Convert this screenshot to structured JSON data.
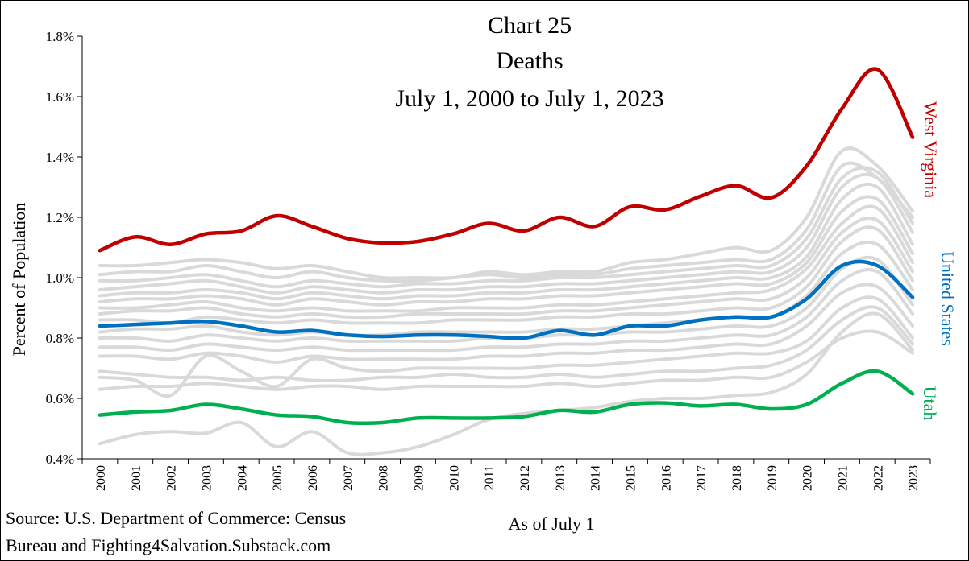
{
  "chart_data": {
    "type": "line",
    "title": [
      "Chart 25",
      "Deaths",
      "July 1, 2000 to July 1, 2023"
    ],
    "xlabel": "As of July 1",
    "ylabel": "Percent of Population",
    "ylim": [
      0.4,
      1.8
    ],
    "yticks": [
      "0.4%",
      "0.6%",
      "0.8%",
      "1.0%",
      "1.2%",
      "1.4%",
      "1.6%",
      "1.8%"
    ],
    "yticks_values": [
      0.4,
      0.6,
      0.8,
      1.0,
      1.2,
      1.4,
      1.6,
      1.8
    ],
    "categories": [
      "2000",
      "2001",
      "2002",
      "2003",
      "2004",
      "2005",
      "2006",
      "2007",
      "2008",
      "2009",
      "2010",
      "2011",
      "2012",
      "2013",
      "2014",
      "2015",
      "2016",
      "2017",
      "2018",
      "2019",
      "2020",
      "2021",
      "2022",
      "2023"
    ],
    "series": [
      {
        "name": "West Virginia",
        "color": "#C00000",
        "values": [
          1.09,
          1.135,
          1.11,
          1.145,
          1.155,
          1.205,
          1.17,
          1.13,
          1.115,
          1.12,
          1.145,
          1.18,
          1.155,
          1.2,
          1.17,
          1.235,
          1.225,
          1.27,
          1.305,
          1.265,
          1.37,
          1.56,
          1.69,
          1.465
        ]
      },
      {
        "name": "United States",
        "color": "#0070C0",
        "values": [
          0.84,
          0.845,
          0.85,
          0.855,
          0.84,
          0.82,
          0.825,
          0.81,
          0.805,
          0.81,
          0.81,
          0.805,
          0.8,
          0.825,
          0.81,
          0.84,
          0.84,
          0.86,
          0.87,
          0.87,
          0.93,
          1.04,
          1.04,
          0.935
        ]
      },
      {
        "name": "Utah",
        "color": "#00B050",
        "values": [
          0.545,
          0.555,
          0.56,
          0.58,
          0.565,
          0.545,
          0.54,
          0.52,
          0.52,
          0.535,
          0.535,
          0.535,
          0.54,
          0.56,
          0.555,
          0.58,
          0.585,
          0.575,
          0.58,
          0.565,
          0.58,
          0.65,
          0.69,
          0.615
        ]
      }
    ],
    "background_series": [
      {
        "values": [
          0.45,
          0.48,
          0.49,
          0.485,
          0.52,
          0.44,
          0.49,
          0.42,
          0.42,
          0.44,
          0.48,
          0.53,
          0.55,
          0.56,
          0.57,
          0.59,
          0.6,
          0.6,
          0.61,
          0.62,
          0.68,
          0.82,
          0.88,
          0.76
        ]
      },
      {
        "values": [
          0.63,
          0.64,
          0.64,
          0.65,
          0.64,
          0.63,
          0.64,
          0.64,
          0.63,
          0.64,
          0.64,
          0.64,
          0.64,
          0.65,
          0.64,
          0.65,
          0.66,
          0.66,
          0.67,
          0.67,
          0.72,
          0.8,
          0.82,
          0.75
        ]
      },
      {
        "values": [
          0.67,
          0.66,
          0.61,
          0.74,
          0.69,
          0.64,
          0.73,
          0.7,
          0.69,
          0.7,
          0.7,
          0.7,
          0.7,
          0.71,
          0.71,
          0.72,
          0.73,
          0.74,
          0.75,
          0.75,
          0.79,
          0.9,
          0.93,
          0.8
        ]
      },
      {
        "values": [
          0.69,
          0.68,
          0.67,
          0.67,
          0.66,
          0.67,
          0.66,
          0.66,
          0.67,
          0.67,
          0.68,
          0.67,
          0.67,
          0.68,
          0.67,
          0.68,
          0.69,
          0.69,
          0.7,
          0.71,
          0.76,
          0.86,
          0.9,
          0.78
        ]
      },
      {
        "values": [
          0.74,
          0.74,
          0.73,
          0.75,
          0.74,
          0.72,
          0.74,
          0.73,
          0.73,
          0.73,
          0.73,
          0.74,
          0.74,
          0.75,
          0.75,
          0.76,
          0.76,
          0.77,
          0.78,
          0.78,
          0.84,
          0.95,
          0.97,
          0.84
        ]
      },
      {
        "values": [
          0.77,
          0.77,
          0.76,
          0.78,
          0.77,
          0.76,
          0.77,
          0.76,
          0.76,
          0.76,
          0.76,
          0.77,
          0.77,
          0.78,
          0.78,
          0.79,
          0.79,
          0.8,
          0.81,
          0.81,
          0.87,
          0.99,
          1.02,
          0.88
        ]
      },
      {
        "values": [
          0.8,
          0.8,
          0.79,
          0.81,
          0.8,
          0.79,
          0.8,
          0.79,
          0.79,
          0.79,
          0.79,
          0.8,
          0.8,
          0.81,
          0.81,
          0.82,
          0.82,
          0.83,
          0.84,
          0.84,
          0.9,
          1.03,
          1.06,
          0.91
        ]
      },
      {
        "values": [
          0.82,
          0.83,
          0.83,
          0.84,
          0.82,
          0.81,
          0.82,
          0.81,
          0.81,
          0.82,
          0.82,
          0.82,
          0.82,
          0.83,
          0.83,
          0.84,
          0.85,
          0.86,
          0.87,
          0.87,
          0.94,
          1.08,
          1.11,
          0.96
        ]
      },
      {
        "values": [
          0.86,
          0.86,
          0.85,
          0.87,
          0.86,
          0.85,
          0.86,
          0.85,
          0.85,
          0.85,
          0.86,
          0.86,
          0.86,
          0.87,
          0.87,
          0.88,
          0.88,
          0.89,
          0.9,
          0.9,
          0.97,
          1.12,
          1.16,
          0.99
        ]
      },
      {
        "values": [
          0.88,
          0.89,
          0.89,
          0.9,
          0.88,
          0.87,
          0.88,
          0.87,
          0.87,
          0.88,
          0.88,
          0.88,
          0.88,
          0.89,
          0.89,
          0.9,
          0.91,
          0.92,
          0.93,
          0.93,
          1.0,
          1.15,
          1.19,
          1.02
        ]
      },
      {
        "values": [
          0.9,
          0.9,
          0.91,
          0.92,
          0.9,
          0.89,
          0.9,
          0.89,
          0.89,
          0.89,
          0.9,
          0.9,
          0.9,
          0.91,
          0.91,
          0.92,
          0.93,
          0.94,
          0.95,
          0.96,
          1.03,
          1.18,
          1.23,
          1.05
        ]
      },
      {
        "values": [
          0.92,
          0.93,
          0.93,
          0.94,
          0.93,
          0.91,
          0.93,
          0.92,
          0.91,
          0.92,
          0.92,
          0.93,
          0.93,
          0.94,
          0.94,
          0.95,
          0.96,
          0.97,
          0.98,
          0.98,
          1.05,
          1.22,
          1.26,
          1.08
        ]
      },
      {
        "values": [
          0.94,
          0.95,
          0.95,
          0.96,
          0.95,
          0.93,
          0.95,
          0.94,
          0.93,
          0.94,
          0.94,
          0.95,
          0.95,
          0.96,
          0.96,
          0.97,
          0.98,
          0.99,
          1.0,
          1.0,
          1.07,
          1.26,
          1.3,
          1.11
        ]
      },
      {
        "values": [
          0.96,
          0.97,
          0.98,
          0.99,
          0.97,
          0.95,
          0.97,
          0.96,
          0.95,
          0.96,
          0.96,
          0.97,
          0.97,
          0.98,
          0.98,
          0.99,
          1.0,
          1.01,
          1.02,
          1.02,
          1.1,
          1.3,
          1.33,
          1.15
        ]
      },
      {
        "values": [
          0.99,
          0.99,
          1.0,
          1.01,
          0.99,
          0.97,
          0.99,
          0.98,
          0.97,
          0.98,
          0.98,
          0.99,
          0.99,
          1.0,
          1.0,
          1.01,
          1.02,
          1.03,
          1.04,
          1.04,
          1.13,
          1.33,
          1.35,
          1.18
        ]
      },
      {
        "values": [
          1.01,
          1.02,
          1.02,
          1.04,
          1.02,
          1.0,
          1.02,
          1.0,
          0.99,
          0.99,
          1.0,
          1.01,
          1.0,
          1.01,
          1.01,
          1.03,
          1.04,
          1.05,
          1.06,
          1.06,
          1.16,
          1.37,
          1.33,
          1.2
        ]
      },
      {
        "values": [
          1.04,
          1.04,
          1.05,
          1.06,
          1.05,
          1.03,
          1.04,
          1.02,
          1.0,
          1.0,
          1.0,
          1.02,
          1.01,
          1.02,
          1.02,
          1.05,
          1.06,
          1.08,
          1.1,
          1.09,
          1.2,
          1.42,
          1.37,
          1.22
        ]
      }
    ]
  },
  "source": {
    "line1": "Source: U.S. Department of Commerce: Census",
    "line2": "Bureau and Fighting4Salvation.Substack.com"
  }
}
